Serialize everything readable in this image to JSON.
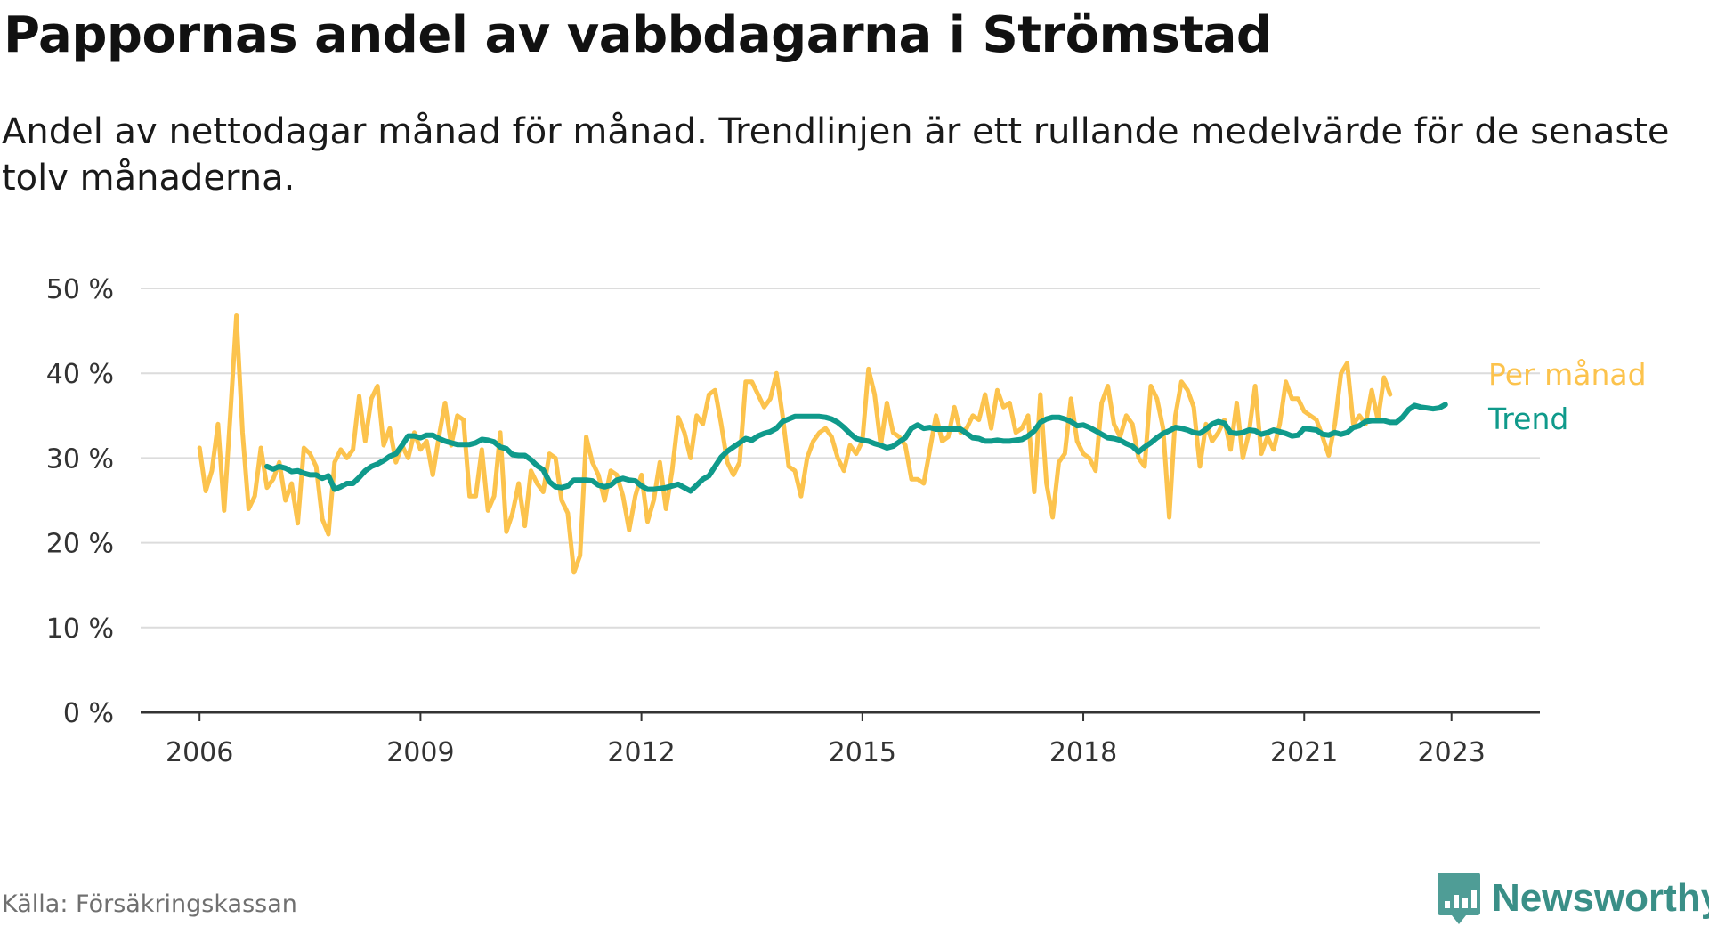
{
  "chart_data": {
    "type": "line",
    "title": "Pappornas andel av vabbdagarna i Strömstad",
    "subtitle": "Andel av nettodagar månad för månad. Trendlinjen är ett rullande medelvärde för de senaste tolv månaderna.",
    "xlabel": "",
    "ylabel": "",
    "ylim": [
      0,
      50
    ],
    "xlim": [
      2005.2,
      2024.2
    ],
    "y_ticks": [
      "0 %",
      "10 %",
      "20 %",
      "30 %",
      "40 %",
      "50 %"
    ],
    "y_tick_values": [
      0,
      10,
      20,
      30,
      40,
      50
    ],
    "x_ticks": [
      "2006",
      "2009",
      "2012",
      "2015",
      "2018",
      "2021",
      "2023"
    ],
    "x_tick_values": [
      2006,
      2009,
      2012,
      2015,
      2018,
      2021,
      2023
    ],
    "grid": true,
    "legend_placement": "right end of lines",
    "series": [
      {
        "name": "Per månad",
        "color": "#fcc34d",
        "x_start": 2006.0,
        "step": 0.0833333,
        "values": [
          31.2,
          26.1,
          28.5,
          34.0,
          23.8,
          35.0,
          46.8,
          33.0,
          24.0,
          25.5,
          31.2,
          26.5,
          27.5,
          29.5,
          25.0,
          27.0,
          22.3,
          31.2,
          30.5,
          29.0,
          22.8,
          21.0,
          29.5,
          31.0,
          30.0,
          31.0,
          37.3,
          32.0,
          37.0,
          38.5,
          31.5,
          33.5,
          29.5,
          31.5,
          30.0,
          33.0,
          31.0,
          32.0,
          28.0,
          32.5,
          36.5,
          31.5,
          35.0,
          34.5,
          25.5,
          25.5,
          31.0,
          23.8,
          25.5,
          33.0,
          21.3,
          23.5,
          27.0,
          22.0,
          28.5,
          27.0,
          26.0,
          30.5,
          30.0,
          25.0,
          23.5,
          16.5,
          18.5,
          32.5,
          29.5,
          28.0,
          25.0,
          28.5,
          28.0,
          25.5,
          21.5,
          25.5,
          28.0,
          22.5,
          25.0,
          29.5,
          24.0,
          28.5,
          34.8,
          33.0,
          30.0,
          35.0,
          34.0,
          37.5,
          38.0,
          34.0,
          29.5,
          28.0,
          29.5,
          39.0,
          39.0,
          37.5,
          36.0,
          37.0,
          40.0,
          35.0,
          29.0,
          28.5,
          25.5,
          30.0,
          32.0,
          33.0,
          33.5,
          32.5,
          30.0,
          28.5,
          31.5,
          30.5,
          32.0,
          40.5,
          37.5,
          31.5,
          36.5,
          33.0,
          32.5,
          31.5,
          27.5,
          27.5,
          27.0,
          31.0,
          35.0,
          32.0,
          32.5,
          36.0,
          33.0,
          33.5,
          35.0,
          34.5,
          37.5,
          33.5,
          38.0,
          36.0,
          36.5,
          33.0,
          33.5,
          35.0,
          26.0,
          37.5,
          27.0,
          23.0,
          29.5,
          30.5,
          37.0,
          32.0,
          30.5,
          30.0,
          28.5,
          36.5,
          38.5,
          34.0,
          32.5,
          35.0,
          34.0,
          30.0,
          29.0,
          38.5,
          37.0,
          33.5,
          23.0,
          35.0,
          39.0,
          38.0,
          36.0,
          29.0,
          34.0,
          32.0,
          33.0,
          34.5,
          31.0,
          36.5,
          30.0,
          33.0,
          38.5,
          30.5,
          32.5,
          31.0,
          34.0,
          39.0,
          37.0,
          37.0,
          35.5,
          35.0,
          34.5,
          32.5,
          30.3,
          34.0,
          40.0,
          41.2,
          34.0,
          35.0,
          34.0,
          38.0,
          34.5,
          39.5,
          37.5
        ]
      },
      {
        "name": "Trend",
        "color": "#0f9a8b",
        "x_start": 2006.9167,
        "step": 0.0833333,
        "values": [
          29.0,
          28.7,
          29.0,
          28.8,
          28.4,
          28.5,
          28.2,
          28.0,
          28.0,
          27.6,
          27.9,
          26.3,
          26.6,
          27.0,
          27.0,
          27.7,
          28.5,
          29.0,
          29.3,
          29.7,
          30.2,
          30.5,
          31.5,
          32.6,
          32.6,
          32.4,
          32.7,
          32.7,
          32.3,
          32.0,
          31.8,
          31.6,
          31.6,
          31.6,
          31.8,
          32.2,
          32.1,
          31.9,
          31.3,
          31.1,
          30.4,
          30.3,
          30.3,
          29.8,
          29.1,
          28.6,
          27.2,
          26.6,
          26.5,
          26.7,
          27.4,
          27.4,
          27.4,
          27.3,
          26.8,
          26.6,
          26.8,
          27.4,
          27.6,
          27.4,
          27.3,
          26.7,
          26.3,
          26.3,
          26.4,
          26.5,
          26.7,
          26.9,
          26.5,
          26.1,
          26.8,
          27.5,
          27.9,
          29.0,
          30.1,
          30.8,
          31.3,
          31.8,
          32.3,
          32.1,
          32.6,
          32.9,
          33.1,
          33.5,
          34.3,
          34.6,
          34.9,
          34.9,
          34.9,
          34.9,
          34.9,
          34.8,
          34.6,
          34.2,
          33.6,
          32.9,
          32.3,
          32.1,
          32.0,
          31.7,
          31.5,
          31.2,
          31.4,
          31.9,
          32.4,
          33.5,
          33.9,
          33.5,
          33.6,
          33.4,
          33.4,
          33.4,
          33.4,
          33.4,
          32.9,
          32.4,
          32.3,
          32.0,
          32.0,
          32.1,
          32.0,
          32.0,
          32.1,
          32.2,
          32.6,
          33.2,
          34.2,
          34.6,
          34.8,
          34.8,
          34.6,
          34.3,
          33.8,
          33.9,
          33.6,
          33.2,
          32.8,
          32.4,
          32.3,
          32.1,
          31.7,
          31.4,
          30.7,
          31.3,
          31.8,
          32.4,
          32.9,
          33.2,
          33.6,
          33.5,
          33.3,
          33.0,
          32.9,
          33.4,
          34.0,
          34.3,
          34.1,
          33.0,
          32.9,
          33.0,
          33.3,
          33.2,
          32.8,
          33.0,
          33.3,
          33.1,
          32.9,
          32.6,
          32.7,
          33.5,
          33.4,
          33.3,
          32.8,
          32.7,
          33.0,
          32.8,
          33.0,
          33.6,
          33.8,
          34.3,
          34.4,
          34.4,
          34.4,
          34.2,
          34.2,
          34.8,
          35.7,
          36.2,
          36.0,
          35.9,
          35.8,
          35.9,
          36.3
        ]
      }
    ]
  },
  "labels": {
    "series_1_end": "Per månad",
    "series_2_end": "Trend"
  },
  "footer": {
    "source": "Källa: Försäkringskassan",
    "brand": "Newsworthy"
  }
}
